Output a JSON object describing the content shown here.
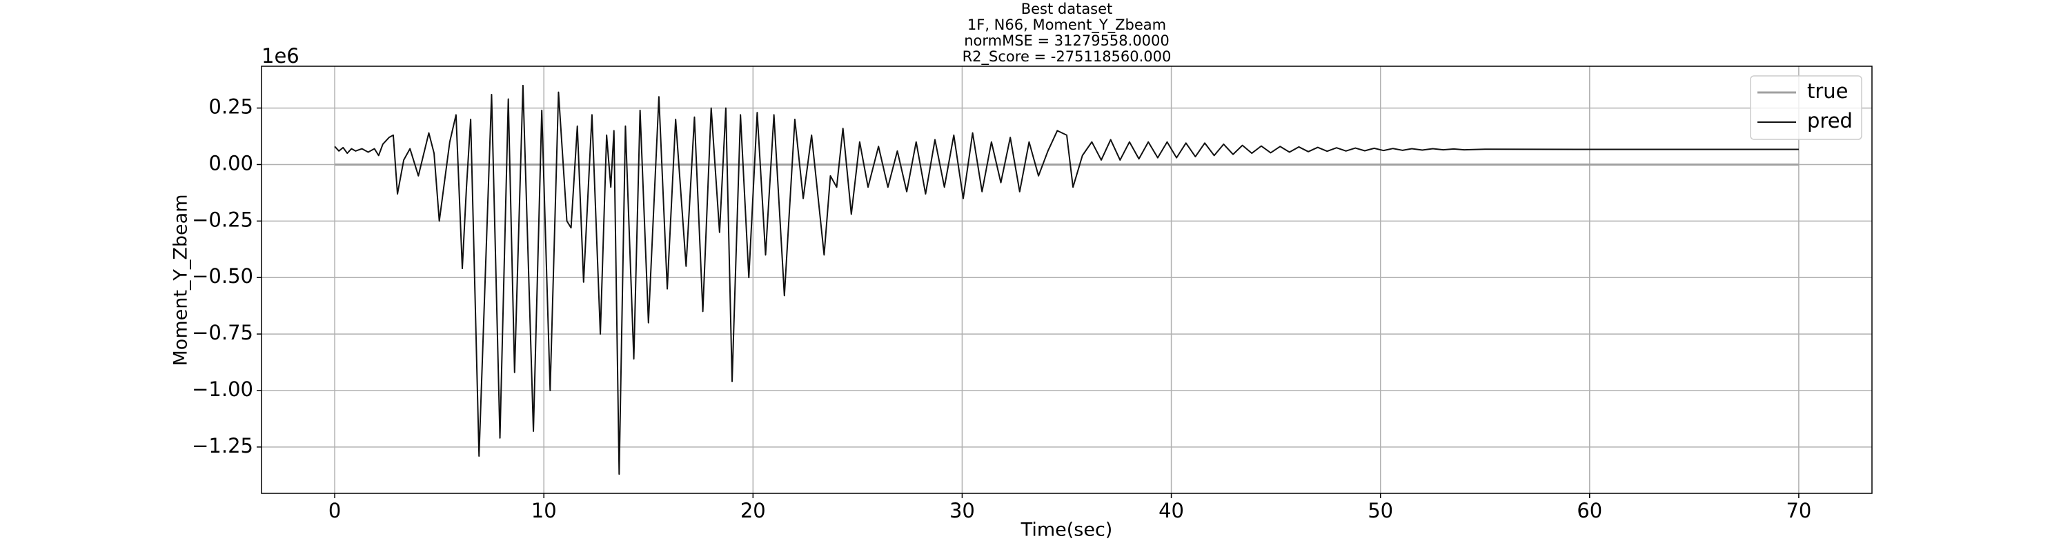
{
  "chart_data": {
    "type": "line",
    "title": [
      "Best dataset",
      "1F, N66, Moment_Y_Zbeam",
      "normMSE = 31279558.0000",
      "R2_Score = -275118560.000"
    ],
    "x_label": "Time(sec)",
    "y_label": "Moment_Y_Zbeam",
    "y_offset_label": "1e6",
    "xlim": [
      -3.5,
      73.5
    ],
    "xticks": [
      0,
      10,
      20,
      30,
      40,
      50,
      60,
      70
    ],
    "ylim": [
      -1.455,
      0.435
    ],
    "yticks": [
      {
        "value": 0.25,
        "label": "0.25"
      },
      {
        "value": 0,
        "label": "0.00"
      },
      {
        "value": -0.25,
        "label": "−0.25"
      },
      {
        "value": -0.5,
        "label": "−0.50"
      },
      {
        "value": -0.75,
        "label": "−0.75"
      },
      {
        "value": -1,
        "label": "−1.00"
      },
      {
        "value": -1.25,
        "label": "−1.25"
      }
    ],
    "grid": true,
    "legend": "upper right",
    "series": [
      {
        "name": "true",
        "color": "#a0a0a0",
        "x": [
          0,
          70
        ],
        "values": [
          0,
          0
        ]
      },
      {
        "name": "pred",
        "color": "#111111",
        "x": [
          0,
          0.2,
          0.4,
          0.6,
          0.8,
          1.0,
          1.3,
          1.6,
          1.9,
          2.1,
          2.3,
          2.6,
          2.8,
          3.0,
          3.3,
          3.6,
          4.0,
          4.5,
          4.75,
          5.0,
          5.5,
          5.8,
          6.1,
          6.3,
          6.5,
          6.9,
          7.5,
          7.9,
          8.3,
          8.6,
          9.0,
          9.5,
          9.9,
          10.3,
          10.7,
          11.1,
          11.3,
          11.6,
          11.9,
          12.3,
          12.7,
          13.0,
          13.2,
          13.35,
          13.6,
          13.9,
          14.3,
          14.6,
          15.0,
          15.5,
          15.9,
          16.3,
          16.8,
          17.2,
          17.6,
          18.0,
          18.4,
          18.7,
          19.0,
          19.4,
          19.8,
          20.2,
          20.6,
          21.0,
          21.5,
          22.0,
          22.4,
          22.8,
          23.4,
          23.7,
          24.0,
          24.3,
          24.7,
          25.1,
          25.5,
          26.0,
          26.45,
          26.9,
          27.35,
          27.8,
          28.25,
          28.7,
          29.15,
          29.6,
          30.05,
          30.5,
          30.95,
          31.4,
          31.85,
          32.3,
          32.75,
          33.2,
          33.65,
          34.1,
          34.55,
          35.0,
          35.3,
          35.75,
          36.2,
          36.65,
          37.1,
          37.55,
          38.0,
          38.45,
          38.9,
          39.35,
          39.8,
          40.25,
          40.7,
          41.15,
          41.6,
          42.05,
          42.5,
          42.95,
          43.4,
          43.85,
          44.3,
          44.75,
          45.2,
          45.65,
          46.1,
          46.55,
          47.0,
          47.45,
          47.9,
          48.35,
          48.8,
          49.25,
          49.7,
          50.15,
          50.6,
          51.05,
          51.5,
          52.0,
          52.5,
          53.0,
          53.5,
          54.0,
          55.0,
          60.0,
          70.0
        ],
        "values": [
          0.08,
          0.06,
          0.075,
          0.05,
          0.07,
          0.06,
          0.07,
          0.055,
          0.07,
          0.04,
          0.09,
          0.12,
          0.13,
          -0.13,
          0.02,
          0.07,
          -0.05,
          0.14,
          0.05,
          -0.25,
          0.1,
          0.22,
          -0.46,
          -0.1,
          0.2,
          -1.29,
          0.31,
          -1.21,
          0.29,
          -0.92,
          0.35,
          -1.18,
          0.24,
          -1.0,
          0.32,
          -0.25,
          -0.28,
          0.17,
          -0.52,
          0.22,
          -0.75,
          0.13,
          -0.1,
          0.15,
          -1.37,
          0.17,
          -0.86,
          0.24,
          -0.7,
          0.3,
          -0.55,
          0.2,
          -0.45,
          0.21,
          -0.65,
          0.25,
          -0.3,
          0.25,
          -0.96,
          0.22,
          -0.5,
          0.23,
          -0.4,
          0.22,
          -0.58,
          0.2,
          -0.15,
          0.13,
          -0.4,
          -0.05,
          -0.1,
          0.16,
          -0.22,
          0.1,
          -0.1,
          0.08,
          -0.1,
          0.06,
          -0.12,
          0.1,
          -0.13,
          0.11,
          -0.1,
          0.13,
          -0.15,
          0.14,
          -0.12,
          0.1,
          -0.08,
          0.12,
          -0.12,
          0.1,
          -0.05,
          0.06,
          0.15,
          0.13,
          -0.1,
          0.04,
          0.1,
          0.02,
          0.11,
          0.02,
          0.1,
          0.025,
          0.1,
          0.03,
          0.1,
          0.03,
          0.095,
          0.035,
          0.095,
          0.04,
          0.09,
          0.045,
          0.085,
          0.05,
          0.082,
          0.052,
          0.08,
          0.055,
          0.078,
          0.057,
          0.076,
          0.059,
          0.074,
          0.06,
          0.073,
          0.061,
          0.072,
          0.062,
          0.071,
          0.063,
          0.07,
          0.064,
          0.07,
          0.065,
          0.069,
          0.065,
          0.068,
          0.067,
          0.067
        ]
      }
    ]
  }
}
